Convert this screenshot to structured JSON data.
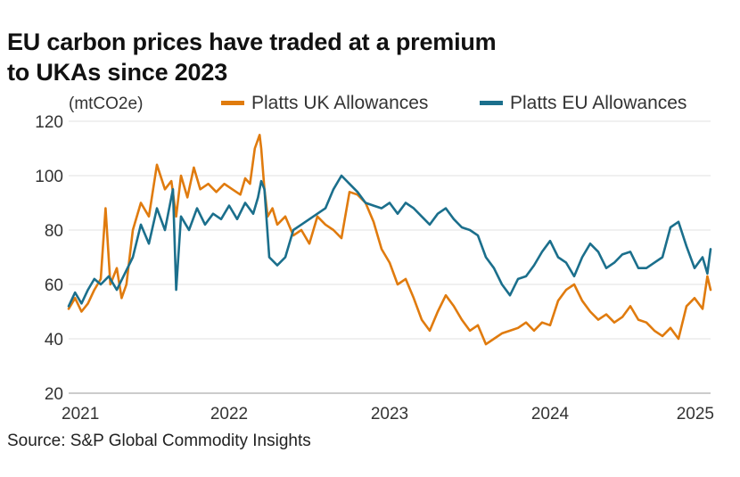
{
  "title_line1": "EU carbon prices have traded at a premium",
  "title_line2": "to UKAs since 2023",
  "source": "Source: S&P Global Commodity Insights",
  "chart_data": {
    "type": "line",
    "ylabel": "(mtCO2e)",
    "ylim": [
      20,
      120
    ],
    "yticks": [
      20,
      40,
      60,
      80,
      100,
      120
    ],
    "xlim": [
      2021.0,
      2025.0
    ],
    "xticks": [
      2021,
      2022,
      2023,
      2024,
      2025
    ],
    "xtick_labels": [
      "2021",
      "2022",
      "2023",
      "2024",
      "2025"
    ],
    "grid": "horizontal",
    "legend_position": "top",
    "series": [
      {
        "name": "Platts UK Allowances",
        "color": "#e07b0e",
        "x": [
          2021.0,
          2021.04,
          2021.08,
          2021.12,
          2021.16,
          2021.2,
          2021.23,
          2021.26,
          2021.3,
          2021.33,
          2021.36,
          2021.4,
          2021.45,
          2021.5,
          2021.55,
          2021.6,
          2021.64,
          2021.67,
          2021.7,
          2021.74,
          2021.78,
          2021.82,
          2021.87,
          2021.92,
          2021.97,
          2022.02,
          2022.07,
          2022.1,
          2022.13,
          2022.16,
          2022.19,
          2022.2,
          2022.22,
          2022.24,
          2022.27,
          2022.3,
          2022.35,
          2022.4,
          2022.45,
          2022.5,
          2022.55,
          2022.6,
          2022.65,
          2022.7,
          2022.75,
          2022.8,
          2022.85,
          2022.9,
          2022.95,
          2023.0,
          2023.05,
          2023.1,
          2023.15,
          2023.2,
          2023.25,
          2023.3,
          2023.35,
          2023.4,
          2023.45,
          2023.5,
          2023.55,
          2023.6,
          2023.65,
          2023.7,
          2023.75,
          2023.8,
          2023.85,
          2023.9,
          2023.95,
          2024.0,
          2024.05,
          2024.1,
          2024.15,
          2024.2,
          2024.25,
          2024.3,
          2024.35,
          2024.4,
          2024.45,
          2024.5,
          2024.55,
          2024.6,
          2024.65,
          2024.7,
          2024.75,
          2024.8,
          2024.85,
          2024.9,
          2024.95,
          2024.98,
          2025.0
        ],
        "values": [
          51,
          55,
          50,
          53,
          58,
          62,
          88,
          60,
          66,
          55,
          60,
          80,
          90,
          85,
          104,
          95,
          98,
          85,
          100,
          92,
          103,
          95,
          97,
          94,
          97,
          95,
          93,
          99,
          97,
          110,
          115,
          110,
          95,
          85,
          88,
          82,
          85,
          78,
          80,
          75,
          85,
          82,
          80,
          77,
          94,
          93,
          90,
          83,
          73,
          68,
          60,
          62,
          55,
          47,
          43,
          50,
          56,
          52,
          47,
          43,
          45,
          38,
          40,
          42,
          43,
          44,
          46,
          43,
          46,
          45,
          54,
          58,
          60,
          54,
          50,
          47,
          49,
          46,
          48,
          52,
          47,
          46,
          43,
          41,
          44,
          40,
          52,
          55,
          51,
          63,
          58
        ]
      },
      {
        "name": "Platts EU Allowances",
        "color": "#1b6f8c",
        "x": [
          2021.0,
          2021.04,
          2021.08,
          2021.12,
          2021.16,
          2021.2,
          2021.25,
          2021.3,
          2021.35,
          2021.4,
          2021.45,
          2021.5,
          2021.55,
          2021.6,
          2021.65,
          2021.67,
          2021.7,
          2021.75,
          2021.8,
          2021.85,
          2021.9,
          2021.95,
          2022.0,
          2022.05,
          2022.1,
          2022.15,
          2022.18,
          2022.2,
          2022.22,
          2022.25,
          2022.3,
          2022.35,
          2022.4,
          2022.45,
          2022.5,
          2022.55,
          2022.6,
          2022.65,
          2022.7,
          2022.75,
          2022.8,
          2022.85,
          2022.9,
          2022.95,
          2023.0,
          2023.05,
          2023.1,
          2023.15,
          2023.2,
          2023.25,
          2023.3,
          2023.35,
          2023.4,
          2023.45,
          2023.5,
          2023.55,
          2023.6,
          2023.65,
          2023.7,
          2023.75,
          2023.8,
          2023.85,
          2023.9,
          2023.95,
          2024.0,
          2024.05,
          2024.1,
          2024.15,
          2024.2,
          2024.25,
          2024.3,
          2024.35,
          2024.4,
          2024.45,
          2024.5,
          2024.55,
          2024.6,
          2024.65,
          2024.7,
          2024.75,
          2024.8,
          2024.85,
          2024.9,
          2024.95,
          2024.98,
          2025.0
        ],
        "values": [
          52,
          57,
          53,
          58,
          62,
          60,
          63,
          58,
          64,
          70,
          82,
          75,
          88,
          80,
          95,
          58,
          85,
          80,
          88,
          82,
          86,
          84,
          89,
          84,
          90,
          86,
          92,
          98,
          95,
          70,
          67,
          70,
          80,
          82,
          84,
          86,
          88,
          95,
          100,
          97,
          94,
          90,
          89,
          88,
          90,
          86,
          90,
          88,
          85,
          82,
          86,
          88,
          84,
          81,
          80,
          78,
          70,
          66,
          60,
          56,
          62,
          63,
          67,
          72,
          76,
          70,
          68,
          63,
          70,
          75,
          72,
          66,
          68,
          71,
          72,
          66,
          66,
          68,
          70,
          81,
          83,
          74,
          66,
          70,
          64,
          73
        ]
      }
    ]
  }
}
